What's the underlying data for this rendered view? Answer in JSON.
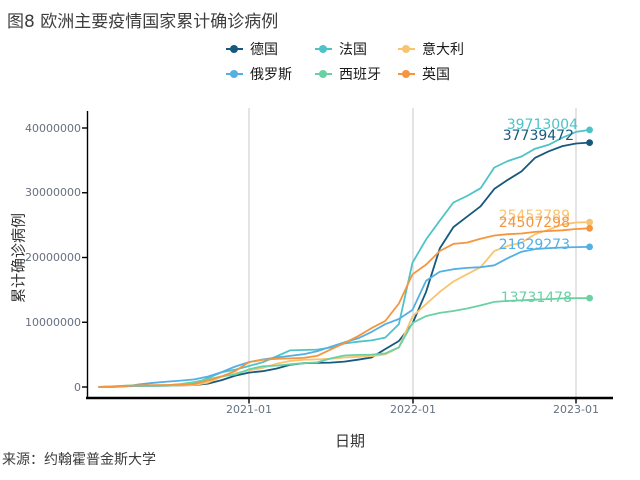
{
  "title": "图8 欧洲主要疫情国家累计确诊病例",
  "source": "来源：约翰霍普金斯大学",
  "chart_data": {
    "type": "line",
    "title": "图8 欧洲主要疫情国家累计确诊病例",
    "xlabel": "日期",
    "ylabel": "累计确诊病例",
    "x_ticks": [
      "2021-01",
      "2022-01",
      "2023-01"
    ],
    "y_ticks": [
      "0",
      "10000000",
      "20000000",
      "30000000",
      "40000000"
    ],
    "ylim": [
      0,
      40000000
    ],
    "grid": "vertical year gridlines only",
    "legend_position": "top-center, two rows",
    "units": "values_millions = cumulative confirmed cases in millions, monthly (approx, read from curve)",
    "x_monthly": [
      "2020-02",
      "2020-03",
      "2020-04",
      "2020-05",
      "2020-06",
      "2020-07",
      "2020-08",
      "2020-09",
      "2020-10",
      "2020-11",
      "2020-12",
      "2021-01",
      "2021-02",
      "2021-03",
      "2021-04",
      "2021-05",
      "2021-06",
      "2021-07",
      "2021-08",
      "2021-09",
      "2021-10",
      "2021-11",
      "2021-12",
      "2022-01",
      "2022-02",
      "2022-03",
      "2022-04",
      "2022-05",
      "2022-06",
      "2022-07",
      "2022-08",
      "2022-09",
      "2022-10",
      "2022-11",
      "2022-12",
      "2023-01",
      "2023-02"
    ],
    "series": [
      {
        "id": "germany",
        "name": "德国",
        "color": "#16597C",
        "final_value": 37739472,
        "values_millions": [
          0.01,
          0.07,
          0.16,
          0.18,
          0.2,
          0.21,
          0.24,
          0.29,
          0.52,
          1.06,
          1.76,
          2.22,
          2.44,
          2.84,
          3.42,
          3.68,
          3.73,
          3.77,
          3.93,
          4.22,
          4.56,
          5.85,
          7.11,
          9.8,
          14.7,
          21.4,
          24.7,
          26.3,
          27.9,
          30.6,
          32.0,
          33.3,
          35.4,
          36.4,
          37.2,
          37.6,
          37.74
        ]
      },
      {
        "id": "france",
        "name": "法国",
        "color": "#4EC3C7",
        "final_value": 39713004,
        "values_millions": [
          0.0,
          0.05,
          0.13,
          0.15,
          0.16,
          0.19,
          0.28,
          0.55,
          1.41,
          2.27,
          2.68,
          3.24,
          3.82,
          4.71,
          5.65,
          5.72,
          5.77,
          6.1,
          6.72,
          7.0,
          7.2,
          7.63,
          9.71,
          19.2,
          22.8,
          25.7,
          28.5,
          29.5,
          30.7,
          33.9,
          34.9,
          35.6,
          36.8,
          37.4,
          38.5,
          39.4,
          39.71
        ]
      },
      {
        "id": "italy",
        "name": "意大利",
        "color": "#F9C46F",
        "final_value": 25453789,
        "values_millions": [
          0.0,
          0.11,
          0.21,
          0.23,
          0.24,
          0.25,
          0.27,
          0.31,
          0.68,
          1.6,
          2.11,
          2.55,
          2.93,
          3.58,
          4.01,
          4.22,
          4.26,
          4.35,
          4.55,
          4.67,
          4.77,
          5.03,
          6.12,
          10.9,
          12.8,
          14.7,
          16.3,
          17.4,
          18.5,
          21.0,
          21.8,
          22.3,
          23.6,
          24.3,
          25.1,
          25.4,
          25.45
        ]
      },
      {
        "id": "russia",
        "name": "俄罗斯",
        "color": "#54AFE4",
        "final_value": 21629273,
        "values_millions": [
          0.0,
          0.0,
          0.11,
          0.41,
          0.65,
          0.83,
          0.99,
          1.17,
          1.62,
          2.3,
          3.16,
          3.85,
          4.25,
          4.55,
          4.81,
          5.06,
          5.51,
          6.22,
          6.9,
          7.51,
          8.51,
          9.7,
          10.5,
          11.9,
          16.4,
          17.8,
          18.2,
          18.4,
          18.5,
          18.8,
          19.9,
          20.9,
          21.3,
          21.45,
          21.55,
          21.6,
          21.63
        ]
      },
      {
        "id": "spain",
        "name": "西班牙",
        "color": "#69D1A4",
        "final_value": 13731478,
        "values_millions": [
          0.0,
          0.1,
          0.21,
          0.24,
          0.25,
          0.29,
          0.46,
          0.77,
          1.19,
          1.64,
          1.93,
          2.74,
          3.2,
          3.3,
          3.51,
          3.68,
          3.8,
          4.42,
          4.86,
          4.95,
          5.01,
          5.19,
          6.13,
          9.9,
          10.95,
          11.45,
          11.74,
          12.13,
          12.61,
          13.14,
          13.3,
          13.39,
          13.49,
          13.57,
          13.68,
          13.72,
          13.73
        ]
      },
      {
        "id": "uk",
        "name": "英国",
        "color": "#F6953C",
        "final_value": 24507298,
        "values_millions": [
          0.0,
          0.03,
          0.17,
          0.27,
          0.3,
          0.31,
          0.33,
          0.46,
          1.01,
          1.63,
          2.49,
          3.84,
          4.18,
          4.35,
          4.42,
          4.49,
          4.8,
          5.8,
          6.8,
          7.84,
          9.1,
          10.2,
          12.9,
          17.4,
          18.9,
          21.0,
          22.1,
          22.3,
          22.9,
          23.4,
          23.6,
          23.7,
          23.96,
          24.1,
          24.2,
          24.4,
          24.51
        ]
      }
    ]
  }
}
